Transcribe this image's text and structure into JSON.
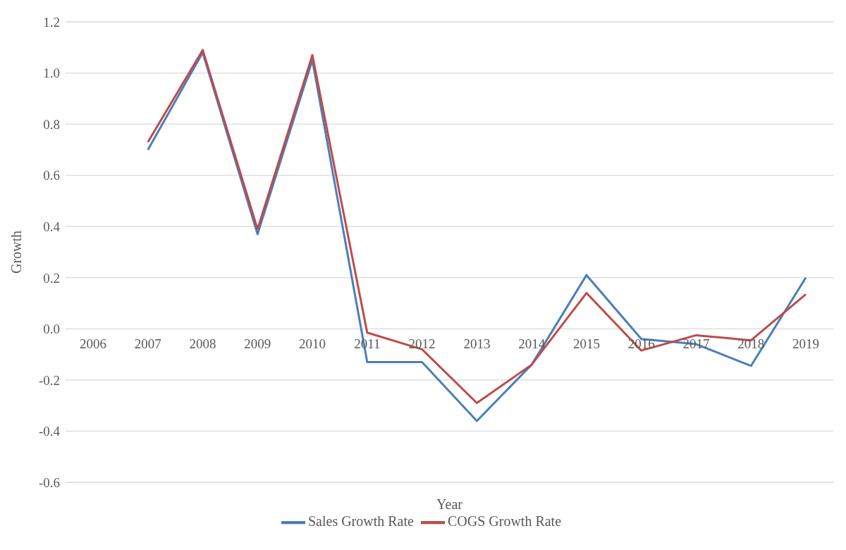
{
  "chart_data": {
    "type": "line",
    "xlabel": "Year",
    "ylabel": "Growth",
    "categories": [
      "2006",
      "2007",
      "2008",
      "2009",
      "2010",
      "2011",
      "2012",
      "2013",
      "2014",
      "2015",
      "2016",
      "2017",
      "2018",
      "2019"
    ],
    "series": [
      {
        "name": "Sales Growth Rate",
        "color": "#4a7ebb",
        "values": [
          null,
          0.7,
          1.08,
          0.37,
          1.05,
          -0.13,
          -0.13,
          -0.36,
          -0.14,
          0.21,
          -0.04,
          -0.06,
          -0.145,
          0.2
        ]
      },
      {
        "name": "COGS Growth Rate",
        "color": "#be4b48",
        "values": [
          null,
          0.73,
          1.09,
          0.39,
          1.07,
          -0.015,
          -0.08,
          -0.29,
          -0.14,
          0.14,
          -0.085,
          -0.025,
          -0.045,
          0.135
        ]
      }
    ],
    "ylim": [
      -0.6,
      1.2
    ],
    "yticks": [
      {
        "value": -0.6,
        "label": "-0.6"
      },
      {
        "value": -0.4,
        "label": "-0.4"
      },
      {
        "value": -0.2,
        "label": "-0.2"
      },
      {
        "value": 0,
        "label": "0.0"
      },
      {
        "value": 0.2,
        "label": "0.2"
      },
      {
        "value": 0.4,
        "label": "0.4"
      },
      {
        "value": 0.6,
        "label": "0.6"
      },
      {
        "value": 0.8,
        "label": "0.8"
      },
      {
        "value": 1,
        "label": "1.0"
      },
      {
        "value": 1.2,
        "label": "1.2"
      }
    ],
    "grid": "y",
    "legend": "bottom",
    "marker": "none",
    "line_style": "solid"
  }
}
